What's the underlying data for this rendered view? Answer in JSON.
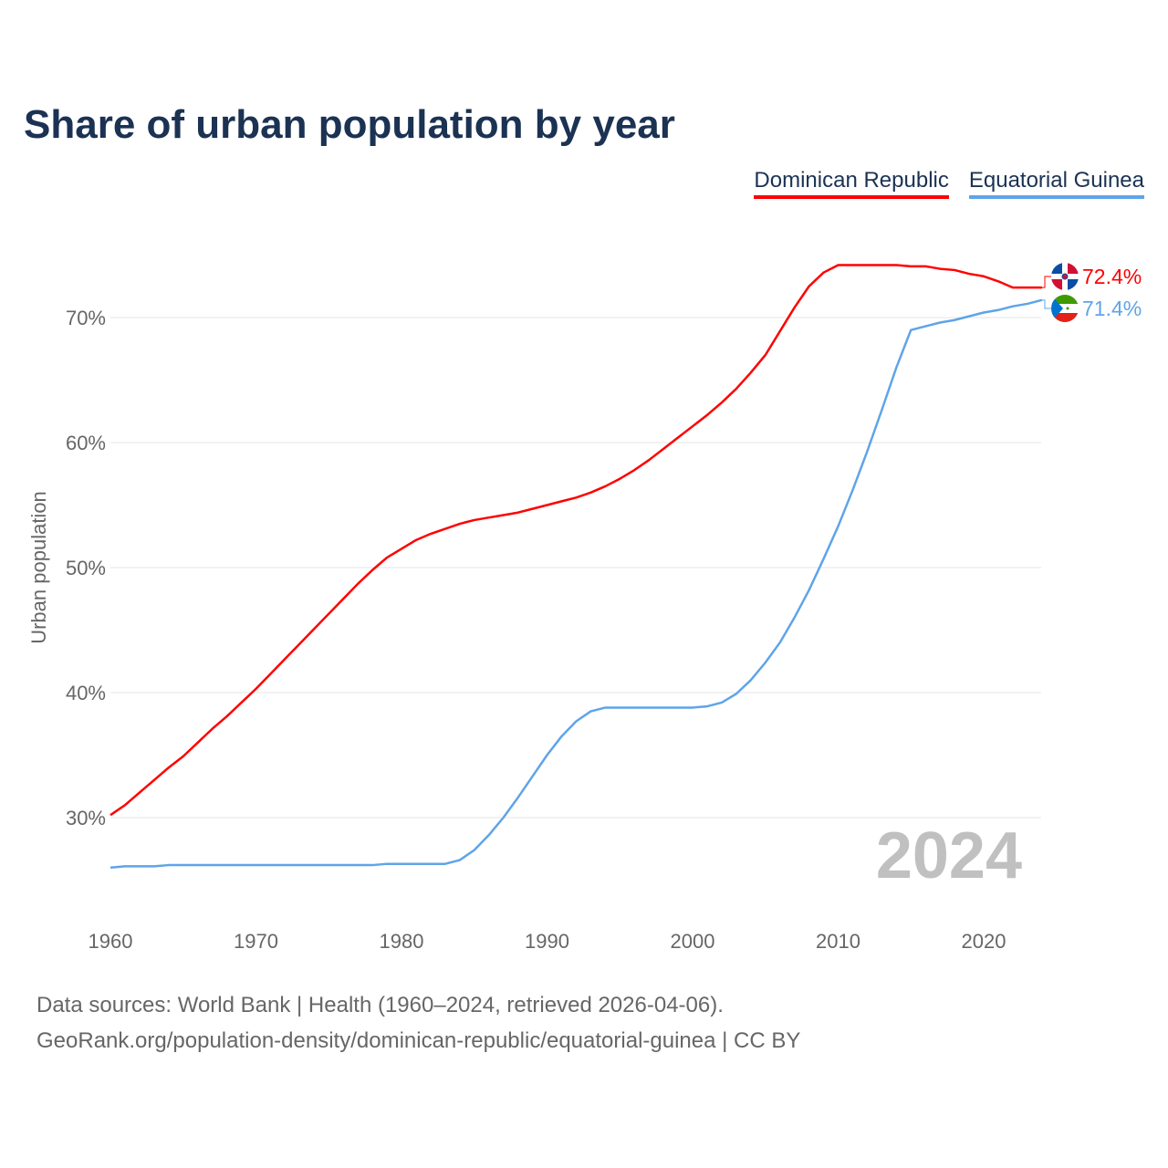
{
  "title": "Share of urban population by year",
  "chart_data": {
    "type": "line",
    "title": "Share of urban population by year",
    "xlabel": "",
    "ylabel": "Urban population",
    "xlim": [
      1960,
      2024
    ],
    "ylim": [
      23,
      76
    ],
    "x_ticks": [
      1960,
      1970,
      1980,
      1990,
      2000,
      2010,
      2020
    ],
    "y_ticks": [
      30,
      40,
      50,
      60,
      70
    ],
    "y_tick_labels": [
      "30%",
      "40%",
      "50%",
      "60%",
      "70%"
    ],
    "x_tick_labels": [
      "1960",
      "1970",
      "1980",
      "1990",
      "2000",
      "2010",
      "2020"
    ],
    "grid": true,
    "legend_position": "top-right",
    "year_watermark": "2024",
    "series": [
      {
        "name": "Dominican Republic",
        "color": "#ff0000",
        "end_label": "72.4%",
        "points": [
          [
            1960,
            30.2
          ],
          [
            1961,
            31.0
          ],
          [
            1962,
            32.0
          ],
          [
            1963,
            33.0
          ],
          [
            1964,
            34.0
          ],
          [
            1965,
            34.9
          ],
          [
            1966,
            36.0
          ],
          [
            1967,
            37.1
          ],
          [
            1968,
            38.1
          ],
          [
            1969,
            39.2
          ],
          [
            1970,
            40.3
          ],
          [
            1971,
            41.5
          ],
          [
            1972,
            42.7
          ],
          [
            1973,
            43.9
          ],
          [
            1974,
            45.1
          ],
          [
            1975,
            46.3
          ],
          [
            1976,
            47.5
          ],
          [
            1977,
            48.7
          ],
          [
            1978,
            49.8
          ],
          [
            1979,
            50.8
          ],
          [
            1980,
            51.5
          ],
          [
            1981,
            52.2
          ],
          [
            1982,
            52.7
          ],
          [
            1983,
            53.1
          ],
          [
            1984,
            53.5
          ],
          [
            1985,
            53.8
          ],
          [
            1986,
            54.0
          ],
          [
            1987,
            54.2
          ],
          [
            1988,
            54.4
          ],
          [
            1989,
            54.7
          ],
          [
            1990,
            55.0
          ],
          [
            1991,
            55.3
          ],
          [
            1992,
            55.6
          ],
          [
            1993,
            56.0
          ],
          [
            1994,
            56.5
          ],
          [
            1995,
            57.1
          ],
          [
            1996,
            57.8
          ],
          [
            1997,
            58.6
          ],
          [
            1998,
            59.5
          ],
          [
            1999,
            60.4
          ],
          [
            2000,
            61.3
          ],
          [
            2001,
            62.2
          ],
          [
            2002,
            63.2
          ],
          [
            2003,
            64.3
          ],
          [
            2004,
            65.6
          ],
          [
            2005,
            67.0
          ],
          [
            2006,
            68.9
          ],
          [
            2007,
            70.8
          ],
          [
            2008,
            72.5
          ],
          [
            2009,
            73.6
          ],
          [
            2010,
            74.2
          ],
          [
            2011,
            74.2
          ],
          [
            2012,
            74.2
          ],
          [
            2013,
            74.2
          ],
          [
            2014,
            74.2
          ],
          [
            2015,
            74.1
          ],
          [
            2016,
            74.1
          ],
          [
            2017,
            73.9
          ],
          [
            2018,
            73.8
          ],
          [
            2019,
            73.5
          ],
          [
            2020,
            73.3
          ],
          [
            2021,
            72.9
          ],
          [
            2022,
            72.4
          ],
          [
            2023,
            72.4
          ],
          [
            2024,
            72.4
          ]
        ]
      },
      {
        "name": "Equatorial Guinea",
        "color": "#5fa4e8",
        "end_label": "71.4%",
        "points": [
          [
            1960,
            26.0
          ],
          [
            1961,
            26.1
          ],
          [
            1963,
            26.1
          ],
          [
            1964,
            26.2
          ],
          [
            1978,
            26.2
          ],
          [
            1979,
            26.3
          ],
          [
            1983,
            26.3
          ],
          [
            1984,
            26.6
          ],
          [
            1985,
            27.4
          ],
          [
            1986,
            28.6
          ],
          [
            1987,
            30.0
          ],
          [
            1988,
            31.6
          ],
          [
            1989,
            33.3
          ],
          [
            1990,
            35.0
          ],
          [
            1991,
            36.5
          ],
          [
            1992,
            37.7
          ],
          [
            1993,
            38.5
          ],
          [
            1994,
            38.8
          ],
          [
            2000,
            38.8
          ],
          [
            2001,
            38.9
          ],
          [
            2002,
            39.2
          ],
          [
            2003,
            39.9
          ],
          [
            2004,
            41.0
          ],
          [
            2005,
            42.4
          ],
          [
            2006,
            44.0
          ],
          [
            2007,
            46.0
          ],
          [
            2008,
            48.2
          ],
          [
            2009,
            50.7
          ],
          [
            2010,
            53.3
          ],
          [
            2011,
            56.2
          ],
          [
            2012,
            59.3
          ],
          [
            2013,
            62.6
          ],
          [
            2014,
            66.0
          ],
          [
            2015,
            69.0
          ],
          [
            2016,
            69.3
          ],
          [
            2017,
            69.6
          ],
          [
            2018,
            69.8
          ],
          [
            2019,
            70.1
          ],
          [
            2020,
            70.4
          ],
          [
            2021,
            70.6
          ],
          [
            2022,
            70.9
          ],
          [
            2023,
            71.1
          ],
          [
            2024,
            71.4
          ]
        ]
      }
    ]
  },
  "source_line1": "Data sources: World Bank | Health (1960–2024, retrieved 2026-04-06).",
  "source_line2": "GeoRank.org/population-density/dominican-republic/equatorial-guinea | CC BY"
}
